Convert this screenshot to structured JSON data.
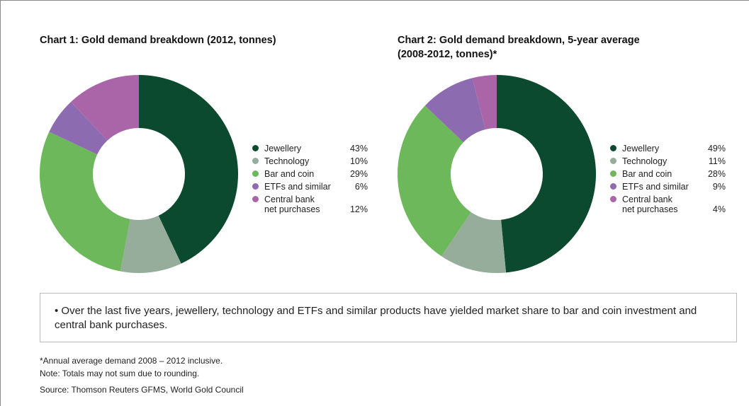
{
  "chart_data": [
    {
      "type": "pie",
      "title": "Chart 1: Gold demand breakdown (2012, tonnes)",
      "categories": [
        "Jewellery",
        "Technology",
        "Bar and coin",
        "ETFs and similar",
        "Central bank\nnet purchases"
      ],
      "values": [
        43,
        10,
        29,
        6,
        12
      ],
      "value_labels": [
        "43%",
        "10%",
        "29%",
        "6%",
        "12%"
      ],
      "colors": [
        "#0b4a2e",
        "#96ad9c",
        "#6cb85a",
        "#8d6bb0",
        "#a965a8"
      ]
    },
    {
      "type": "pie",
      "title": "Chart 2: Gold demand breakdown, 5-year average\n(2008-2012, tonnes)*",
      "categories": [
        "Jewellery",
        "Technology",
        "Bar and coin",
        "ETFs and similar",
        "Central bank\nnet purchases"
      ],
      "values": [
        49,
        11,
        28,
        9,
        4
      ],
      "value_labels": [
        "49%",
        "11%",
        "28%",
        "9%",
        "4%"
      ],
      "colors": [
        "#0b4a2e",
        "#96ad9c",
        "#6cb85a",
        "#8d6bb0",
        "#a965a8"
      ]
    }
  ],
  "notes": {
    "bullet": "Over the last five years, jewellery, technology and ETFs and similar products have yielded market share to bar and coin investment and central bank purchases.",
    "footnotes": [
      "*Annual average demand 2008 – 2012 inclusive.",
      "Note: Totals may not sum due to rounding.",
      "Source: Thomson Reuters GFMS, World Gold Council"
    ]
  }
}
